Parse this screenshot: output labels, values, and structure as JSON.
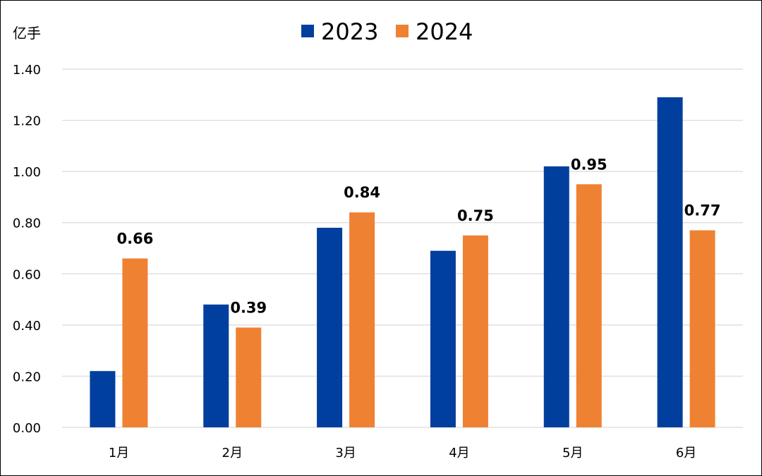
{
  "chart_data": {
    "type": "bar",
    "unit_label": "亿手",
    "categories": [
      "1月",
      "2月",
      "3月",
      "4月",
      "5月",
      "6月"
    ],
    "series": [
      {
        "name": "2023",
        "color": "#003f9e",
        "values": [
          0.22,
          0.48,
          0.78,
          0.69,
          1.02,
          1.29
        ],
        "data_labels": false
      },
      {
        "name": "2024",
        "color": "#ef8133",
        "values": [
          0.66,
          0.39,
          0.84,
          0.75,
          0.95,
          0.77
        ],
        "data_labels": true
      }
    ],
    "ylim": [
      0,
      1.4
    ],
    "yticks": [
      "0.00",
      "0.20",
      "0.40",
      "0.60",
      "0.80",
      "1.00",
      "1.20",
      "1.40"
    ],
    "grid": true,
    "legend_position": "top-center"
  }
}
